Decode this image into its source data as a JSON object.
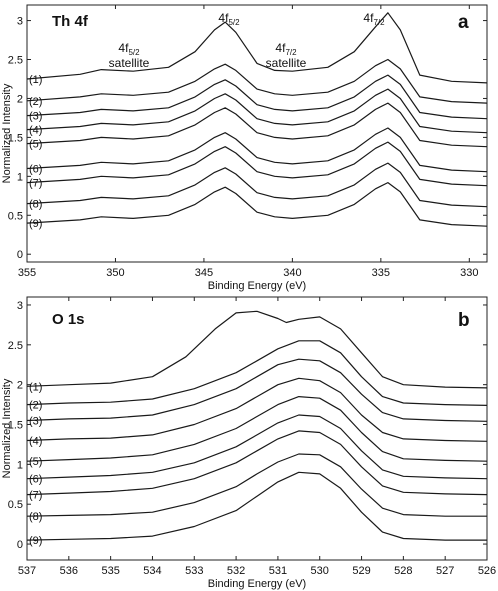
{
  "chart_data": [
    {
      "type": "line",
      "panel_title": "Th 4f",
      "panel_letter": "a",
      "xlabel": "Binding Energy (eV)",
      "ylabel": "Normalized Intensity",
      "xlim": [
        355,
        329
      ],
      "x_reversed": true,
      "ylim": [
        -0.1,
        3.2
      ],
      "xticks": [
        355,
        350,
        345,
        340,
        335,
        330
      ],
      "yticks": [
        0,
        0.5,
        1,
        1.5,
        2,
        2.5,
        3
      ],
      "ytick_labels": [
        "0",
        "0.5",
        "1",
        "1.5",
        "2",
        "2.5",
        "3"
      ],
      "grid": false,
      "annotations": [
        {
          "main": "4f",
          "sub": "5/2",
          "x": 343.7,
          "y": 3.0
        },
        {
          "main": "4f",
          "sub": "7/2",
          "x": 334.6,
          "y": 3.0
        },
        {
          "main": "4f",
          "sub": "5/2",
          "line2": "satellite",
          "x": 350.8,
          "y": 2.55
        },
        {
          "main": "4f",
          "sub": "7/2",
          "line2": "satellite",
          "x": 339.8,
          "y": 2.38
        }
      ],
      "series": [
        {
          "name": "(1)",
          "x": [
            355,
            352,
            350.8,
            349,
            347,
            345.5,
            344.4,
            343.8,
            343.2,
            342,
            341,
            340,
            338,
            336.5,
            335.3,
            334.6,
            333.9,
            332.8,
            331,
            329
          ],
          "y": [
            2.25,
            2.31,
            2.37,
            2.35,
            2.4,
            2.6,
            2.88,
            2.98,
            2.85,
            2.45,
            2.36,
            2.35,
            2.4,
            2.6,
            2.92,
            3.1,
            2.88,
            2.3,
            2.22,
            2.2
          ]
        },
        {
          "name": "(2)",
          "x": [
            355,
            352,
            350.8,
            349,
            347,
            345.5,
            344.4,
            343.8,
            343.2,
            342,
            341,
            340,
            338,
            336.5,
            335.3,
            334.6,
            333.9,
            332.8,
            331,
            329
          ],
          "y": [
            1.97,
            2.02,
            2.06,
            2.04,
            2.08,
            2.22,
            2.38,
            2.44,
            2.36,
            2.12,
            2.06,
            2.04,
            2.08,
            2.22,
            2.42,
            2.5,
            2.38,
            2.02,
            1.96,
            1.94
          ]
        },
        {
          "name": "(3)",
          "x": [
            355,
            352,
            350.8,
            349,
            347,
            345.5,
            344.4,
            343.8,
            343.2,
            342,
            341,
            340,
            338,
            336.5,
            335.3,
            334.6,
            333.9,
            332.8,
            331,
            329
          ],
          "y": [
            1.78,
            1.82,
            1.86,
            1.84,
            1.88,
            2.02,
            2.18,
            2.24,
            2.16,
            1.92,
            1.86,
            1.84,
            1.88,
            2.02,
            2.22,
            2.3,
            2.18,
            1.82,
            1.76,
            1.74
          ]
        },
        {
          "name": "(4)",
          "x": [
            355,
            352,
            350.8,
            349,
            347,
            345.5,
            344.4,
            343.8,
            343.2,
            342,
            341,
            340,
            338,
            336.5,
            335.3,
            334.6,
            333.9,
            332.8,
            331,
            329
          ],
          "y": [
            1.6,
            1.64,
            1.68,
            1.66,
            1.7,
            1.84,
            2.0,
            2.06,
            1.98,
            1.74,
            1.68,
            1.66,
            1.7,
            1.84,
            2.04,
            2.12,
            2.0,
            1.64,
            1.58,
            1.56
          ]
        },
        {
          "name": "(5)",
          "x": [
            355,
            352,
            350.8,
            349,
            347,
            345.5,
            344.4,
            343.8,
            343.2,
            342,
            341,
            340,
            338,
            336.5,
            335.3,
            334.6,
            333.9,
            332.8,
            331,
            329
          ],
          "y": [
            1.42,
            1.46,
            1.5,
            1.48,
            1.52,
            1.66,
            1.82,
            1.88,
            1.8,
            1.56,
            1.5,
            1.48,
            1.52,
            1.66,
            1.86,
            1.94,
            1.82,
            1.46,
            1.4,
            1.38
          ]
        },
        {
          "name": "(6)",
          "x": [
            355,
            352,
            350.8,
            349,
            347,
            345.5,
            344.4,
            343.8,
            343.2,
            342,
            341,
            340,
            338,
            336.5,
            335.3,
            334.6,
            333.9,
            332.8,
            331,
            329
          ],
          "y": [
            1.1,
            1.14,
            1.18,
            1.16,
            1.2,
            1.34,
            1.5,
            1.56,
            1.48,
            1.24,
            1.18,
            1.16,
            1.2,
            1.34,
            1.54,
            1.62,
            1.5,
            1.14,
            1.08,
            1.06
          ]
        },
        {
          "name": "(7)",
          "x": [
            355,
            352,
            350.8,
            349,
            347,
            345.5,
            344.4,
            343.8,
            343.2,
            342,
            341,
            340,
            338,
            336.5,
            335.3,
            334.6,
            333.9,
            332.8,
            331,
            329
          ],
          "y": [
            0.92,
            0.96,
            1.0,
            0.98,
            1.02,
            1.16,
            1.32,
            1.38,
            1.3,
            1.06,
            1.0,
            0.98,
            1.02,
            1.16,
            1.36,
            1.44,
            1.32,
            0.96,
            0.9,
            0.88
          ]
        },
        {
          "name": "(8)",
          "x": [
            355,
            352,
            350.8,
            349,
            347,
            345.5,
            344.4,
            343.8,
            343.2,
            342,
            341,
            340,
            338,
            336.5,
            335.3,
            334.6,
            333.9,
            332.8,
            331,
            329
          ],
          "y": [
            0.65,
            0.69,
            0.73,
            0.71,
            0.75,
            0.89,
            1.05,
            1.11,
            1.03,
            0.79,
            0.73,
            0.71,
            0.75,
            0.89,
            1.09,
            1.17,
            1.05,
            0.69,
            0.63,
            0.61
          ]
        },
        {
          "name": "(9)",
          "x": [
            355,
            352,
            350.8,
            349,
            347,
            345.5,
            344.4,
            343.8,
            343.2,
            342,
            341,
            340,
            338,
            336.5,
            335.3,
            334.6,
            333.9,
            332.8,
            331,
            329
          ],
          "y": [
            0.4,
            0.44,
            0.48,
            0.46,
            0.5,
            0.64,
            0.8,
            0.86,
            0.78,
            0.54,
            0.48,
            0.46,
            0.5,
            0.64,
            0.84,
            0.92,
            0.8,
            0.44,
            0.38,
            0.36
          ]
        }
      ]
    },
    {
      "type": "line",
      "panel_title": "O 1s",
      "panel_letter": "b",
      "xlabel": "Binding Energy (eV)",
      "ylabel": "Normalized Intensity",
      "xlim": [
        537,
        526
      ],
      "x_reversed": true,
      "ylim": [
        -0.2,
        3.1
      ],
      "xticks": [
        537,
        536,
        535,
        534,
        533,
        532,
        531,
        530,
        529,
        528,
        527,
        526
      ],
      "yticks": [
        0,
        0.5,
        1,
        1.5,
        2,
        2.5,
        3
      ],
      "ytick_labels": [
        "0",
        "0.5",
        "1",
        "1.5",
        "2",
        "2.5",
        "3"
      ],
      "grid": false,
      "series": [
        {
          "name": "(1)",
          "x": [
            537,
            536,
            535,
            534,
            533.2,
            532.5,
            532,
            531.5,
            531,
            530.8,
            530.5,
            530,
            529.5,
            529,
            528.5,
            528,
            527,
            526
          ],
          "y": [
            1.98,
            2.0,
            2.02,
            2.1,
            2.35,
            2.7,
            2.9,
            2.92,
            2.83,
            2.78,
            2.82,
            2.85,
            2.7,
            2.4,
            2.1,
            2.0,
            1.97,
            1.96
          ]
        },
        {
          "name": "(2)",
          "x": [
            537,
            536,
            535,
            534,
            533,
            532,
            531.5,
            531,
            530.5,
            530,
            529.5,
            529,
            528.5,
            528,
            527,
            526
          ],
          "y": [
            1.75,
            1.77,
            1.78,
            1.82,
            1.95,
            2.15,
            2.3,
            2.45,
            2.55,
            2.55,
            2.4,
            2.1,
            1.85,
            1.77,
            1.75,
            1.74
          ]
        },
        {
          "name": "(3)",
          "x": [
            537,
            536,
            535,
            534,
            533,
            532,
            531.5,
            531,
            530.5,
            530,
            529.5,
            529,
            528.5,
            528,
            527,
            526
          ],
          "y": [
            1.55,
            1.57,
            1.58,
            1.62,
            1.75,
            1.95,
            2.1,
            2.25,
            2.32,
            2.3,
            2.15,
            1.88,
            1.65,
            1.57,
            1.55,
            1.54
          ]
        },
        {
          "name": "(4)",
          "x": [
            537,
            536,
            535,
            534,
            533,
            532,
            531.5,
            531,
            530.5,
            530,
            529.5,
            529,
            528.5,
            528,
            527,
            526
          ],
          "y": [
            1.3,
            1.32,
            1.33,
            1.37,
            1.5,
            1.7,
            1.85,
            2.0,
            2.08,
            2.05,
            1.9,
            1.62,
            1.4,
            1.32,
            1.3,
            1.29
          ]
        },
        {
          "name": "(5)",
          "x": [
            537,
            536,
            535,
            534,
            533,
            532,
            531.5,
            531,
            530.5,
            530,
            529.5,
            529,
            528.5,
            528,
            527,
            526
          ],
          "y": [
            1.04,
            1.06,
            1.08,
            1.12,
            1.25,
            1.45,
            1.6,
            1.75,
            1.85,
            1.83,
            1.68,
            1.4,
            1.16,
            1.07,
            1.05,
            1.04
          ]
        },
        {
          "name": "(6)",
          "x": [
            537,
            536,
            535,
            534,
            533,
            532,
            531.5,
            531,
            530.5,
            530,
            529.5,
            529,
            528.5,
            528,
            527,
            526
          ],
          "y": [
            0.82,
            0.84,
            0.86,
            0.9,
            1.02,
            1.22,
            1.37,
            1.52,
            1.62,
            1.6,
            1.45,
            1.17,
            0.93,
            0.85,
            0.83,
            0.82
          ]
        },
        {
          "name": "(7)",
          "x": [
            537,
            536,
            535,
            534,
            533,
            532,
            531.5,
            531,
            530.5,
            530,
            529.5,
            529,
            528.5,
            528,
            527,
            526
          ],
          "y": [
            0.62,
            0.64,
            0.66,
            0.7,
            0.82,
            1.02,
            1.17,
            1.32,
            1.42,
            1.4,
            1.25,
            0.97,
            0.73,
            0.65,
            0.63,
            0.62
          ]
        },
        {
          "name": "(8)",
          "x": [
            537,
            536,
            535,
            534,
            533,
            532,
            531.5,
            531,
            530.5,
            530,
            529.5,
            529,
            528.5,
            528,
            527,
            526
          ],
          "y": [
            0.35,
            0.36,
            0.37,
            0.4,
            0.52,
            0.72,
            0.88,
            1.03,
            1.13,
            1.12,
            0.97,
            0.69,
            0.45,
            0.37,
            0.35,
            0.35
          ]
        },
        {
          "name": "(9)",
          "x": [
            537,
            536,
            535,
            534,
            533,
            532,
            531.5,
            531,
            530.5,
            530,
            529.5,
            529,
            528.5,
            528,
            527,
            526
          ],
          "y": [
            0.05,
            0.06,
            0.07,
            0.1,
            0.22,
            0.42,
            0.6,
            0.78,
            0.9,
            0.88,
            0.7,
            0.4,
            0.15,
            0.07,
            0.05,
            0.05
          ]
        }
      ]
    }
  ]
}
